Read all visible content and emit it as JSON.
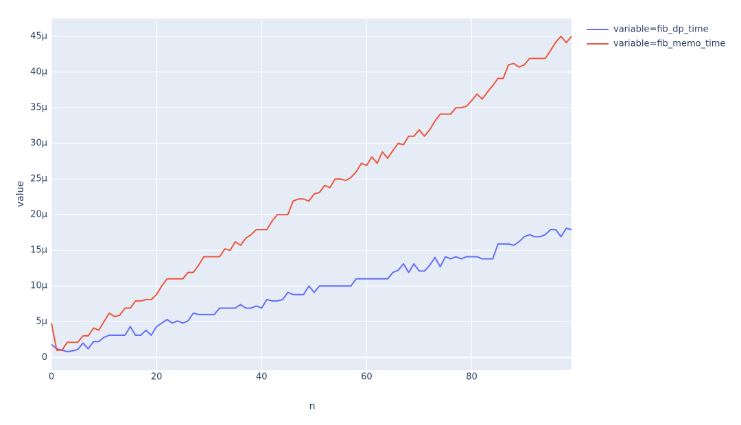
{
  "chart_data": {
    "type": "line",
    "xlabel": "n",
    "ylabel": "value",
    "x": [
      0,
      1,
      2,
      3,
      4,
      5,
      6,
      7,
      8,
      9,
      10,
      11,
      12,
      13,
      14,
      15,
      16,
      17,
      18,
      19,
      20,
      21,
      22,
      23,
      24,
      25,
      26,
      27,
      28,
      29,
      30,
      31,
      32,
      33,
      34,
      35,
      36,
      37,
      38,
      39,
      40,
      41,
      42,
      43,
      44,
      45,
      46,
      47,
      48,
      49,
      50,
      51,
      52,
      53,
      54,
      55,
      56,
      57,
      58,
      59,
      60,
      61,
      62,
      63,
      64,
      65,
      66,
      67,
      68,
      69,
      70,
      71,
      72,
      73,
      74,
      75,
      76,
      77,
      78,
      79,
      80,
      81,
      82,
      83,
      84,
      85,
      86,
      87,
      88,
      89,
      90,
      91,
      92,
      93,
      94,
      95,
      96,
      97,
      98,
      99
    ],
    "series": [
      {
        "name": "variable=fib_dp_time",
        "color": "#636efa",
        "values": [
          1.8e-06,
          1.2e-06,
          1e-06,
          8e-07,
          9e-07,
          1.1e-06,
          2e-06,
          1.2e-06,
          2.2e-06,
          2.2e-06,
          2.8e-06,
          3.1e-06,
          3.1e-06,
          3.1e-06,
          3.1e-06,
          4.3e-06,
          3.1e-06,
          3.1e-06,
          3.8e-06,
          3.1e-06,
          4.3e-06,
          4.8e-06,
          5.3e-06,
          4.8e-06,
          5.1e-06,
          4.8e-06,
          5.1e-06,
          6.2e-06,
          6e-06,
          6e-06,
          6e-06,
          6e-06,
          6.9e-06,
          6.9e-06,
          6.9e-06,
          6.9e-06,
          7.4e-06,
          6.9e-06,
          6.9e-06,
          7.2e-06,
          6.9e-06,
          8.1e-06,
          7.9e-06,
          7.9e-06,
          8.1e-06,
          9.1e-06,
          8.8e-06,
          8.8e-06,
          8.8e-06,
          1e-05,
          9.1e-06,
          1e-05,
          1e-05,
          1e-05,
          1e-05,
          1e-05,
          1e-05,
          1e-05,
          1.1e-05,
          1.1e-05,
          1.1e-05,
          1.1e-05,
          1.1e-05,
          1.1e-05,
          1.1e-05,
          1.19e-05,
          1.22e-05,
          1.31e-05,
          1.19e-05,
          1.31e-05,
          1.21e-05,
          1.21e-05,
          1.29e-05,
          1.4e-05,
          1.27e-05,
          1.41e-05,
          1.38e-05,
          1.41e-05,
          1.38e-05,
          1.41e-05,
          1.41e-05,
          1.41e-05,
          1.38e-05,
          1.38e-05,
          1.38e-05,
          1.59e-05,
          1.59e-05,
          1.59e-05,
          1.57e-05,
          1.62e-05,
          1.69e-05,
          1.72e-05,
          1.69e-05,
          1.69e-05,
          1.72e-05,
          1.79e-05,
          1.79e-05,
          1.69e-05,
          1.81e-05,
          1.79e-05
        ]
      },
      {
        "name": "variable=fib_memo_time",
        "color": "#ef553b",
        "values": [
          4.8e-06,
          1e-06,
          1e-06,
          2.1e-06,
          2.1e-06,
          2.1e-06,
          3e-06,
          3e-06,
          4.1e-06,
          3.8e-06,
          5e-06,
          6.2e-06,
          5.7e-06,
          5.9e-06,
          6.9e-06,
          6.9e-06,
          7.9e-06,
          7.9e-06,
          8.1e-06,
          8.1e-06,
          8.8e-06,
          1e-05,
          1.1e-05,
          1.1e-05,
          1.1e-05,
          1.1e-05,
          1.19e-05,
          1.19e-05,
          1.29e-05,
          1.41e-05,
          1.41e-05,
          1.41e-05,
          1.41e-05,
          1.52e-05,
          1.5e-05,
          1.62e-05,
          1.57e-05,
          1.67e-05,
          1.72e-05,
          1.79e-05,
          1.79e-05,
          1.79e-05,
          1.91e-05,
          2e-05,
          2e-05,
          2e-05,
          2.19e-05,
          2.22e-05,
          2.22e-05,
          2.19e-05,
          2.29e-05,
          2.31e-05,
          2.41e-05,
          2.38e-05,
          2.5e-05,
          2.5e-05,
          2.48e-05,
          2.52e-05,
          2.6e-05,
          2.72e-05,
          2.69e-05,
          2.81e-05,
          2.72e-05,
          2.88e-05,
          2.79e-05,
          2.9e-05,
          3e-05,
          2.98e-05,
          3.1e-05,
          3.1e-05,
          3.19e-05,
          3.1e-05,
          3.19e-05,
          3.31e-05,
          3.41e-05,
          3.41e-05,
          3.41e-05,
          3.5e-05,
          3.5e-05,
          3.52e-05,
          3.6e-05,
          3.69e-05,
          3.62e-05,
          3.72e-05,
          3.81e-05,
          3.91e-05,
          3.91e-05,
          4.1e-05,
          4.12e-05,
          4.07e-05,
          4.1e-05,
          4.19e-05,
          4.19e-05,
          4.19e-05,
          4.19e-05,
          4.3e-05,
          4.42e-05,
          4.5e-05,
          4.41e-05,
          4.5e-05
        ]
      }
    ],
    "xlim": [
      0,
      99
    ],
    "xticks": [
      0,
      20,
      40,
      60,
      80
    ],
    "ylim": [
      -1.8e-06,
      4.75e-05
    ],
    "yticks": [
      0,
      {
        "value": 5e-06,
        "label": "5μ"
      },
      {
        "value": 1e-05,
        "label": "10μ"
      },
      {
        "value": 1.5e-05,
        "label": "15μ"
      },
      {
        "value": 2e-05,
        "label": "20μ"
      },
      {
        "value": 2.5e-05,
        "label": "25μ"
      },
      {
        "value": 3e-05,
        "label": "30μ"
      },
      {
        "value": 3.5e-05,
        "label": "35μ"
      },
      {
        "value": 4e-05,
        "label": "40μ"
      },
      {
        "value": 4.5e-05,
        "label": "45μ"
      }
    ],
    "grid": true,
    "legend": "right"
  }
}
